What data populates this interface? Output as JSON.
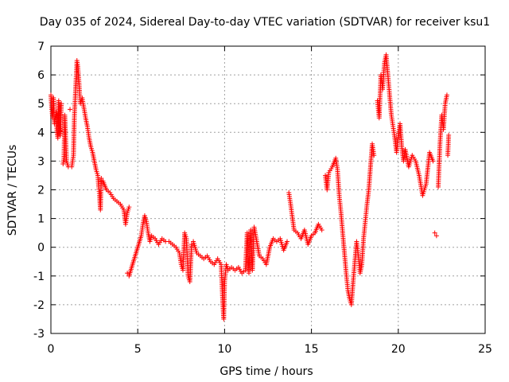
{
  "chart_data": {
    "type": "scatter",
    "title": "Day 035 of 2024, Sidereal Day-to-day VTEC variation (SDTVAR) for receiver ksu1",
    "xlabel": "GPS time / hours",
    "ylabel": "SDTVAR / TECUs",
    "xlim": [
      0,
      25
    ],
    "ylim": [
      -3,
      7
    ],
    "xticks": [
      0,
      5,
      10,
      15,
      20,
      25
    ],
    "yticks": [
      -3,
      -2,
      -1,
      0,
      1,
      2,
      3,
      4,
      5,
      6,
      7
    ],
    "grid": true,
    "marker": "+",
    "series": [
      {
        "name": "SDTVAR",
        "color": "#ff0000",
        "points": [
          [
            0.0,
            5.3
          ],
          [
            0.05,
            4.8
          ],
          [
            0.1,
            4.5
          ],
          [
            0.15,
            5.2
          ],
          [
            0.2,
            4.3
          ],
          [
            0.3,
            4.7
          ],
          [
            0.35,
            4.0
          ],
          [
            0.4,
            3.8
          ],
          [
            0.45,
            5.1
          ],
          [
            0.5,
            4.2
          ],
          [
            0.55,
            3.9
          ],
          [
            0.6,
            5.0
          ],
          [
            0.7,
            2.9
          ],
          [
            0.75,
            3.1
          ],
          [
            0.8,
            4.6
          ],
          [
            0.9,
            3.0
          ],
          [
            1.0,
            2.8
          ],
          [
            1.1,
            4.8
          ],
          [
            1.2,
            2.8
          ],
          [
            1.3,
            3.2
          ],
          [
            1.35,
            4.5
          ],
          [
            1.4,
            5.2
          ],
          [
            1.5,
            6.5
          ],
          [
            1.55,
            6.3
          ],
          [
            1.6,
            5.9
          ],
          [
            1.65,
            5.4
          ],
          [
            1.7,
            5.0
          ],
          [
            1.8,
            5.2
          ],
          [
            2.0,
            4.5
          ],
          [
            2.1,
            4.2
          ],
          [
            2.2,
            3.8
          ],
          [
            2.3,
            3.5
          ],
          [
            2.4,
            3.3
          ],
          [
            2.5,
            3.0
          ],
          [
            2.6,
            2.7
          ],
          [
            2.7,
            2.5
          ],
          [
            2.75,
            2.1
          ],
          [
            2.8,
            1.8
          ],
          [
            2.85,
            1.3
          ],
          [
            2.9,
            2.4
          ],
          [
            3.0,
            2.3
          ],
          [
            3.2,
            2.0
          ],
          [
            3.4,
            1.9
          ],
          [
            3.6,
            1.7
          ],
          [
            3.8,
            1.6
          ],
          [
            4.0,
            1.5
          ],
          [
            4.2,
            1.3
          ],
          [
            4.3,
            0.8
          ],
          [
            4.4,
            1.2
          ],
          [
            4.5,
            1.4
          ],
          [
            4.4,
            -0.9
          ],
          [
            4.5,
            -1.0
          ],
          [
            5.2,
            0.4
          ],
          [
            5.3,
            0.8
          ],
          [
            5.4,
            1.1
          ],
          [
            5.5,
            0.9
          ],
          [
            5.6,
            0.5
          ],
          [
            5.7,
            0.2
          ],
          [
            5.8,
            0.4
          ],
          [
            6.0,
            0.3
          ],
          [
            6.2,
            0.1
          ],
          [
            6.4,
            0.3
          ],
          [
            6.6,
            0.2
          ],
          [
            6.8,
            0.2
          ],
          [
            7.0,
            0.1
          ],
          [
            7.2,
            0.0
          ],
          [
            7.4,
            -0.2
          ],
          [
            7.5,
            -0.6
          ],
          [
            7.6,
            -0.8
          ],
          [
            7.7,
            0.5
          ],
          [
            7.8,
            0.3
          ],
          [
            7.9,
            -1.0
          ],
          [
            8.0,
            -1.2
          ],
          [
            8.1,
            0.1
          ],
          [
            8.2,
            0.2
          ],
          [
            8.4,
            -0.2
          ],
          [
            8.6,
            -0.3
          ],
          [
            8.8,
            -0.4
          ],
          [
            9.0,
            -0.3
          ],
          [
            9.2,
            -0.5
          ],
          [
            9.4,
            -0.6
          ],
          [
            9.6,
            -0.4
          ],
          [
            9.8,
            -0.6
          ],
          [
            9.85,
            -1.3
          ],
          [
            9.9,
            -2.0
          ],
          [
            9.95,
            -2.5
          ],
          [
            10.0,
            -1.2
          ],
          [
            10.1,
            -0.6
          ],
          [
            10.2,
            -0.8
          ],
          [
            10.4,
            -0.7
          ],
          [
            10.6,
            -0.8
          ],
          [
            10.8,
            -0.7
          ],
          [
            11.0,
            -0.9
          ],
          [
            11.2,
            -0.8
          ],
          [
            11.3,
            0.5
          ],
          [
            11.4,
            -0.9
          ],
          [
            11.5,
            0.6
          ],
          [
            11.6,
            -0.8
          ],
          [
            11.7,
            0.7
          ],
          [
            12.0,
            -0.3
          ],
          [
            12.2,
            -0.4
          ],
          [
            12.4,
            -0.6
          ],
          [
            12.6,
            0.0
          ],
          [
            12.8,
            0.3
          ],
          [
            13.0,
            0.2
          ],
          [
            13.2,
            0.3
          ],
          [
            13.4,
            -0.1
          ],
          [
            13.6,
            0.2
          ],
          [
            13.7,
            1.9
          ],
          [
            13.8,
            1.5
          ],
          [
            14.0,
            0.6
          ],
          [
            14.2,
            0.5
          ],
          [
            14.4,
            0.3
          ],
          [
            14.6,
            0.6
          ],
          [
            14.8,
            0.1
          ],
          [
            15.0,
            0.4
          ],
          [
            15.2,
            0.5
          ],
          [
            15.4,
            0.8
          ],
          [
            15.6,
            0.6
          ],
          [
            15.8,
            2.5
          ],
          [
            15.9,
            2.0
          ],
          [
            16.0,
            2.6
          ],
          [
            16.2,
            2.8
          ],
          [
            16.4,
            3.1
          ],
          [
            16.5,
            2.7
          ],
          [
            16.6,
            1.8
          ],
          [
            16.7,
            1.2
          ],
          [
            16.8,
            0.5
          ],
          [
            16.9,
            -0.2
          ],
          [
            17.0,
            -0.9
          ],
          [
            17.1,
            -1.5
          ],
          [
            17.2,
            -1.8
          ],
          [
            17.3,
            -2.0
          ],
          [
            17.4,
            -1.2
          ],
          [
            17.5,
            -0.5
          ],
          [
            17.6,
            0.2
          ],
          [
            17.7,
            -0.3
          ],
          [
            17.8,
            -0.9
          ],
          [
            17.9,
            -0.6
          ],
          [
            18.0,
            0.3
          ],
          [
            18.1,
            0.9
          ],
          [
            18.2,
            1.5
          ],
          [
            18.3,
            2.0
          ],
          [
            18.5,
            3.6
          ],
          [
            18.6,
            3.2
          ],
          [
            18.8,
            5.1
          ],
          [
            18.9,
            4.5
          ],
          [
            19.0,
            6.0
          ],
          [
            19.1,
            5.5
          ],
          [
            19.2,
            6.4
          ],
          [
            19.3,
            6.7
          ],
          [
            19.4,
            6.0
          ],
          [
            19.5,
            5.3
          ],
          [
            19.6,
            4.6
          ],
          [
            19.7,
            4.2
          ],
          [
            19.8,
            3.8
          ],
          [
            19.9,
            3.3
          ],
          [
            20.0,
            3.9
          ],
          [
            20.1,
            4.3
          ],
          [
            20.2,
            3.5
          ],
          [
            20.3,
            3.0
          ],
          [
            20.4,
            3.4
          ],
          [
            20.6,
            2.8
          ],
          [
            20.8,
            3.2
          ],
          [
            21.0,
            3.0
          ],
          [
            21.2,
            2.5
          ],
          [
            21.4,
            1.8
          ],
          [
            21.6,
            2.2
          ],
          [
            21.8,
            3.3
          ],
          [
            22.0,
            3.0
          ],
          [
            22.1,
            0.5
          ],
          [
            22.2,
            0.4
          ],
          [
            22.3,
            2.1
          ],
          [
            22.4,
            3.6
          ],
          [
            22.5,
            4.6
          ],
          [
            22.6,
            4.1
          ],
          [
            22.7,
            5.0
          ],
          [
            22.8,
            5.3
          ],
          [
            22.85,
            3.2
          ],
          [
            22.9,
            3.9
          ]
        ]
      }
    ]
  }
}
